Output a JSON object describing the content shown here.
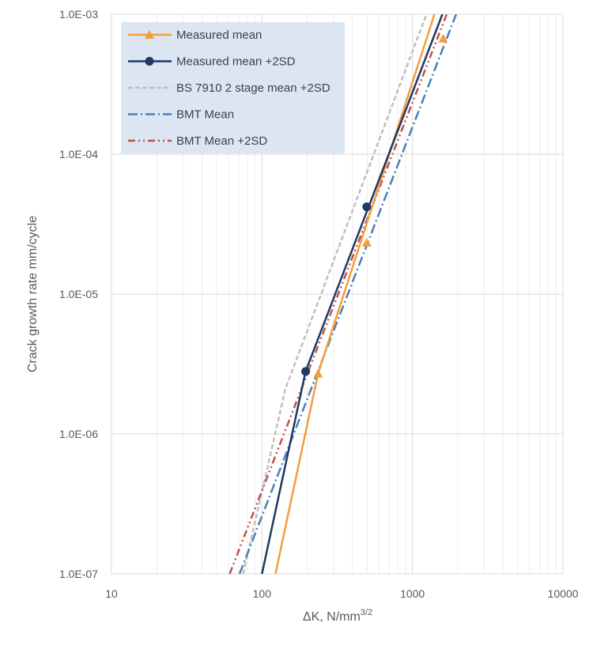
{
  "chart_data": {
    "type": "line",
    "xscale": "log",
    "yscale": "log",
    "xlim": [
      10,
      10000
    ],
    "ylim": [
      1e-07,
      0.001
    ],
    "grid": true,
    "legend_position": "top-left",
    "title": "",
    "xlabel": {
      "text": "ΔK, N/mm",
      "sup": "3/2"
    },
    "ylabel": "Crack growth rate mm/cycle",
    "x_tick_labels": [
      "10",
      "100",
      "1000",
      "10000"
    ],
    "y_tick_labels": [
      "1.0E-07",
      "1.0E-06",
      "1.0E-05",
      "1.0E-04",
      "1.0E-03"
    ],
    "series": [
      {
        "name": "Measured mean",
        "color": "#f59d3d",
        "style": "solid",
        "marker": "triangle",
        "points": [
          [
            123,
            1e-07
          ],
          [
            236,
            2.7e-06
          ],
          [
            1400,
            0.001
          ]
        ],
        "markers": [
          [
            236,
            2.7e-06
          ],
          [
            497,
            2.33e-05
          ],
          [
            1600,
            0.00067
          ]
        ]
      },
      {
        "name": "Measured mean +2SD",
        "color": "#1f3864",
        "style": "solid",
        "marker": "circle",
        "points": [
          [
            100,
            1e-07
          ],
          [
            195,
            2.8e-06
          ],
          [
            1580,
            0.001
          ]
        ],
        "markers": [
          [
            195,
            2.8e-06
          ],
          [
            497,
            4.2e-05
          ]
        ]
      },
      {
        "name": "BS 7910 2 stage mean +2SD",
        "color": "#bfbfbf",
        "style": "dashed",
        "marker": "none",
        "points": [
          [
            75,
            1e-07
          ],
          [
            143,
            2.1e-06
          ],
          [
            1240,
            0.001
          ]
        ]
      },
      {
        "name": "BMT Mean",
        "color": "#4a7ebb",
        "style": "dashdot",
        "marker": "none",
        "points": [
          [
            71,
            1e-07
          ],
          [
            1950,
            0.001
          ]
        ]
      },
      {
        "name": "BMT Mean +2SD",
        "color": "#c0504d",
        "style": "dashdotdot",
        "marker": "none",
        "points": [
          [
            61,
            1e-07
          ],
          [
            1690,
            0.001
          ]
        ]
      }
    ]
  }
}
